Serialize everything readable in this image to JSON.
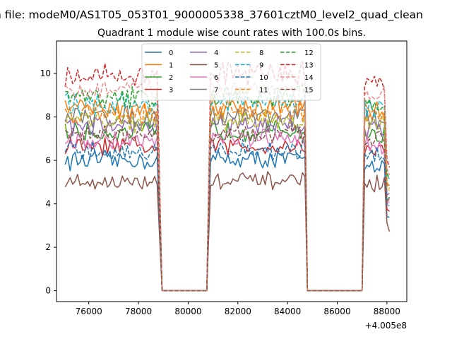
{
  "chart_data": {
    "type": "line",
    "suptitle": "n file: modeM0/AS1T05_053T01_9000005338_37601cztM0_level2_quad_clean",
    "title": "Quadrant 1 module wise count rates with 100.0s bins.",
    "xlabel": "",
    "ylabel": "",
    "x_offset_label": "+4.005e8",
    "xlim": [
      74700,
      88800
    ],
    "ylim": [
      -0.5,
      11.5
    ],
    "x_ticks": [
      76000,
      78000,
      80000,
      82000,
      84000,
      86000,
      88000
    ],
    "x_tick_labels": [
      "76000",
      "78000",
      "80000",
      "82000",
      "84000",
      "86000",
      "88000"
    ],
    "y_ticks": [
      0,
      2,
      4,
      6,
      8,
      10
    ],
    "y_tick_labels": [
      "0",
      "2",
      "4",
      "6",
      "8",
      "10"
    ],
    "grid": false,
    "legend_placement": "top-center",
    "segments": [
      {
        "start": 75050,
        "end": 78800
      },
      {
        "start": 80900,
        "end": 84700
      },
      {
        "start": 87100,
        "end": 88100
      }
    ],
    "zero_points": [
      78950,
      80750,
      84800,
      87000
    ],
    "series": [
      {
        "name": "0",
        "level": 6.0,
        "color": "#1f77b4",
        "dash": false
      },
      {
        "name": "1",
        "level": 8.4,
        "color": "#ff7f0e",
        "dash": false
      },
      {
        "name": "2",
        "level": 7.3,
        "color": "#2ca02c",
        "dash": false
      },
      {
        "name": "3",
        "level": 6.6,
        "color": "#d62728",
        "dash": false
      },
      {
        "name": "4",
        "level": 7.6,
        "color": "#9467bd",
        "dash": false
      },
      {
        "name": "5",
        "level": 5.0,
        "color": "#8c564b",
        "dash": false
      },
      {
        "name": "6",
        "level": 6.9,
        "color": "#e377c2",
        "dash": false
      },
      {
        "name": "7",
        "level": 8.0,
        "color": "#7f7f7f",
        "dash": false
      },
      {
        "name": "8",
        "level": 7.8,
        "color": "#bcbd22",
        "dash": true
      },
      {
        "name": "9",
        "level": 8.6,
        "color": "#17becf",
        "dash": true
      },
      {
        "name": "10",
        "level": 6.4,
        "color": "#1f77b4",
        "dash": true
      },
      {
        "name": "11",
        "level": 8.2,
        "color": "#ff7f0e",
        "dash": true
      },
      {
        "name": "12",
        "level": 8.9,
        "color": "#2ca02c",
        "dash": true
      },
      {
        "name": "13",
        "level": 9.9,
        "color": "#d62728",
        "dash": true
      },
      {
        "name": "14",
        "level": 9.2,
        "color": "#e89090",
        "dash": true
      },
      {
        "name": "15",
        "level": 7.1,
        "color": "#8c564b",
        "dash": true
      }
    ]
  }
}
